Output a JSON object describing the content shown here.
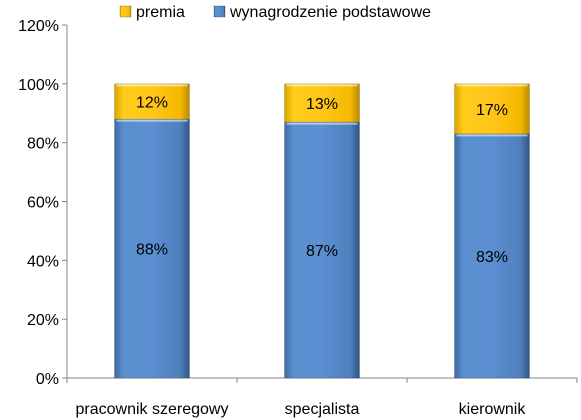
{
  "chart_data": {
    "type": "bar",
    "stacked": true,
    "categories": [
      "pracownik szeregowy",
      "specjalista",
      "kierownik"
    ],
    "series": [
      {
        "name": "wynagrodzenie podstawowe",
        "values": [
          88,
          87,
          83
        ],
        "labels": [
          "88%",
          "87%",
          "83%"
        ],
        "color": "#4F81BD"
      },
      {
        "name": "premia",
        "values": [
          12,
          13,
          17
        ],
        "labels": [
          "12%",
          "13%",
          "17%"
        ],
        "color": "#FFC000"
      }
    ],
    "legend_order": [
      "premia",
      "wynagrodzenie podstawowe"
    ],
    "legend_position": "top",
    "ylim": [
      0,
      120
    ],
    "yticks": [
      0,
      20,
      40,
      60,
      80,
      100,
      120
    ],
    "ytick_labels": [
      "0%",
      "20%",
      "40%",
      "60%",
      "80%",
      "100%",
      "120%"
    ],
    "grid": false
  }
}
